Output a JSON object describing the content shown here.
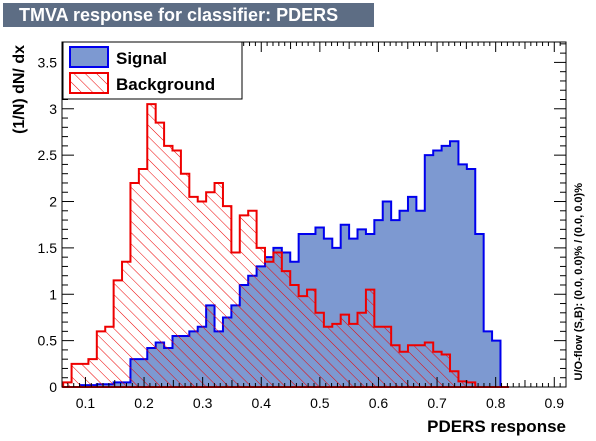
{
  "chart_data": {
    "type": "histogram",
    "title": "TMVA response for classifier: PDERS",
    "xlabel": "PDERS response",
    "ylabel": "(1/N) dN/ dx",
    "side_text": "U/O-flow (S,B): (0.0, 0.0)% / (0.0, 0.0)%",
    "xlim": [
      0.06,
      0.92
    ],
    "ylim": [
      0,
      3.72
    ],
    "x_ticks": [
      "0.1",
      "0.2",
      "0.3",
      "0.4",
      "0.5",
      "0.6",
      "0.7",
      "0.8",
      "0.9"
    ],
    "y_ticks": [
      "0",
      "0.5",
      "1",
      "1.5",
      "2",
      "2.5",
      "3",
      "3.5"
    ],
    "legend_position": "top-left",
    "bin_edges_start": 0.062,
    "bin_width": 0.01435,
    "series": [
      {
        "name": "Signal",
        "fill_color": "#7d99d1",
        "line_color": "#0000ee",
        "values": [
          0,
          0,
          0.02,
          0.02,
          0.03,
          0.03,
          0.05,
          0.05,
          0.3,
          0.3,
          0.42,
          0.48,
          0.42,
          0.55,
          0.55,
          0.6,
          0.65,
          0.88,
          0.6,
          0.75,
          0.88,
          1.1,
          1.2,
          1.3,
          1.4,
          1.5,
          1.45,
          1.35,
          1.65,
          1.65,
          1.72,
          1.6,
          1.5,
          1.75,
          1.6,
          1.7,
          1.65,
          1.8,
          2.0,
          1.8,
          1.9,
          2.05,
          1.9,
          2.5,
          2.55,
          2.6,
          2.65,
          2.4,
          2.35,
          1.65,
          0.6,
          0.5,
          0
        ]
      },
      {
        "name": "Background",
        "fill_color": "none",
        "line_color": "#ee0000",
        "values": [
          0.05,
          0.25,
          0.25,
          0.3,
          0.6,
          0.65,
          1.15,
          1.35,
          2.2,
          2.35,
          3.05,
          2.85,
          2.6,
          2.55,
          2.3,
          2.05,
          2.0,
          2.1,
          2.2,
          1.95,
          1.45,
          1.85,
          1.9,
          1.5,
          1.35,
          1.45,
          1.25,
          1.1,
          0.98,
          1.05,
          0.8,
          0.65,
          0.68,
          0.78,
          0.68,
          0.8,
          1.05,
          0.65,
          0.65,
          0.45,
          0.38,
          0.45,
          0.45,
          0.48,
          0.38,
          0.35,
          0.17,
          0.06,
          0.05,
          0,
          0,
          0,
          0
        ]
      }
    ]
  },
  "page": {
    "bg": "#ffffff"
  }
}
